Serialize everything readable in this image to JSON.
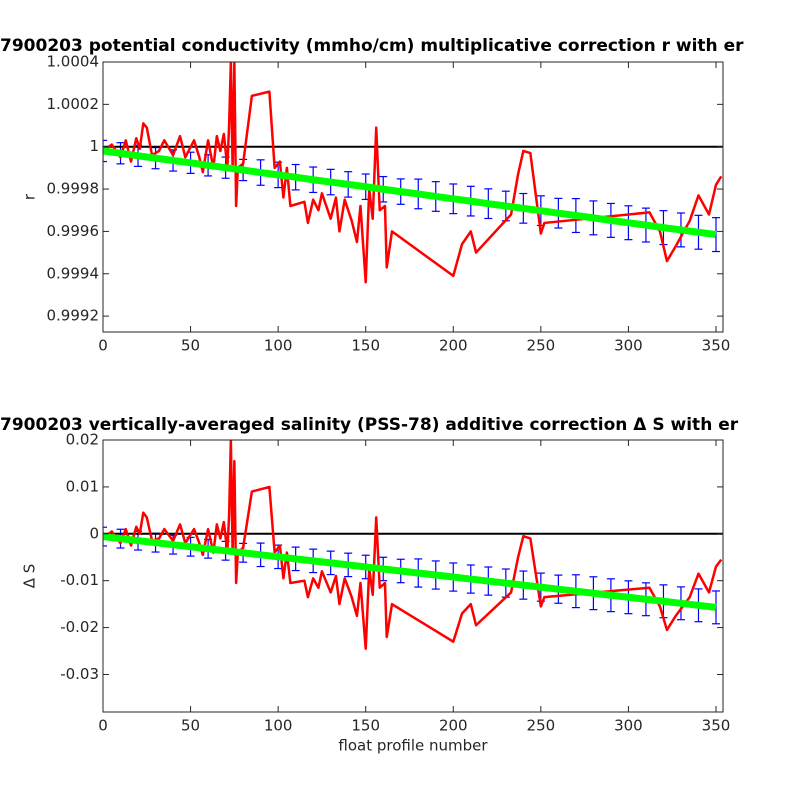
{
  "chart_data": [
    {
      "type": "line",
      "title": "7900203 potential conductivity (mmho/cm) multiplicative correction r with er",
      "ylabel": "r",
      "xlim": [
        0,
        354
      ],
      "xticks": [
        0,
        50,
        100,
        150,
        200,
        250,
        300,
        350
      ],
      "ylim": [
        0.999125,
        1.0004
      ],
      "yticks": [
        0.9992,
        0.9994,
        0.9996,
        0.9998,
        1,
        1.0002,
        1.0004
      ],
      "reference": {
        "value": 1,
        "color": "#000000"
      },
      "series": [
        {
          "color": "#ff0000",
          "x": [
            0,
            5,
            10,
            13,
            16,
            19,
            21,
            23,
            25,
            28,
            32,
            35,
            40,
            44,
            47,
            52,
            55,
            57,
            60,
            63,
            65,
            67,
            69,
            71,
            72,
            73,
            74,
            75,
            76,
            77,
            80,
            85,
            95,
            98,
            101,
            103,
            105,
            107,
            115,
            117,
            120,
            123,
            125,
            130,
            133,
            135,
            138,
            140,
            142,
            145,
            147,
            150,
            152,
            154,
            156,
            158,
            161,
            162,
            165,
            200,
            205,
            210,
            213,
            233,
            237,
            240,
            244,
            250,
            252,
            312,
            318,
            322,
            327,
            335,
            340,
            346,
            350,
            353
          ],
          "values": [
            0.99998,
            1.00001,
            0.99995,
            1.00003,
            0.99993,
            1.00004,
            0.99999,
            1.00011,
            1.00009,
            0.99996,
            0.99998,
            1.00003,
            0.99996,
            1.00005,
            0.99995,
            1.00003,
            0.99995,
            0.99988,
            1.00003,
            0.9999,
            1.00005,
            0.99998,
            1.00006,
            0.9999,
            1.0001,
            1.0004,
            0.9999,
            1.0004,
            0.99972,
            0.9999,
            0.99992,
            1.00024,
            1.00026,
            0.9999,
            0.99993,
            0.99976,
            0.9999,
            0.99972,
            0.99974,
            0.99964,
            0.99975,
            0.9997,
            0.99978,
            0.99966,
            0.99976,
            0.9996,
            0.99975,
            0.9997,
            0.99965,
            0.99955,
            0.99972,
            0.99936,
            0.9998,
            0.99966,
            1.00009,
            0.9997,
            0.99972,
            0.99943,
            0.9996,
            0.99939,
            0.99954,
            0.9996,
            0.9995,
            0.99968,
            0.99987,
            0.99998,
            0.99997,
            0.99959,
            0.99964,
            0.99969,
            0.9996,
            0.99946,
            0.99953,
            0.99965,
            0.99977,
            0.99968,
            0.99982,
            0.99986
          ]
        },
        {
          "color": "#00ff00",
          "error_color": "#0000ff",
          "x": [
            0,
            10,
            20,
            30,
            40,
            50,
            60,
            70,
            80,
            90,
            100,
            110,
            120,
            130,
            140,
            150,
            160,
            170,
            180,
            190,
            200,
            210,
            220,
            230,
            240,
            250,
            260,
            270,
            280,
            290,
            300,
            310,
            320,
            330,
            340,
            350
          ],
          "values": [
            0.99998,
            0.999969,
            0.999957,
            0.999946,
            0.999935,
            0.999924,
            0.999912,
            0.999901,
            0.99989,
            0.999878,
            0.999867,
            0.999856,
            0.999844,
            0.999833,
            0.999822,
            0.999811,
            0.999799,
            0.999788,
            0.999777,
            0.999765,
            0.999754,
            0.999743,
            0.999731,
            0.99972,
            0.999709,
            0.999698,
            0.999686,
            0.999675,
            0.999664,
            0.999652,
            0.999641,
            0.99963,
            0.999618,
            0.999607,
            0.999596,
            0.999585
          ],
          "errors": [
            5e-05,
            5e-05,
            5e-05,
            5e-05,
            5e-05,
            5e-05,
            5e-05,
            5e-05,
            5e-05,
            6e-05,
            6e-05,
            6e-05,
            6e-05,
            6e-05,
            6e-05,
            6e-05,
            6e-05,
            6e-05,
            7e-05,
            7e-05,
            7e-05,
            7e-05,
            7e-05,
            7e-05,
            7e-05,
            7e-05,
            7e-05,
            8e-05,
            8e-05,
            8e-05,
            8e-05,
            8e-05,
            8e-05,
            8e-05,
            8e-05,
            8e-05
          ]
        }
      ]
    },
    {
      "type": "line",
      "title": "7900203 vertically-averaged salinity (PSS-78) additive correction Δ S with er",
      "ylabel": "Δ S",
      "xlabel": "float profile number",
      "xlim": [
        0,
        354
      ],
      "xticks": [
        0,
        50,
        100,
        150,
        200,
        250,
        300,
        350
      ],
      "ylim": [
        -0.038,
        0.02
      ],
      "yticks": [
        -0.03,
        -0.02,
        -0.01,
        0,
        0.01,
        0.02
      ],
      "reference": {
        "value": 0,
        "color": "#000000"
      },
      "series": [
        {
          "color": "#ff0000",
          "x": [
            0,
            5,
            10,
            13,
            16,
            19,
            21,
            23,
            25,
            28,
            32,
            35,
            40,
            44,
            47,
            52,
            55,
            57,
            60,
            63,
            65,
            67,
            69,
            71,
            72,
            73,
            74,
            75,
            76,
            77,
            80,
            85,
            95,
            98,
            101,
            103,
            105,
            107,
            115,
            117,
            120,
            123,
            125,
            130,
            133,
            135,
            138,
            140,
            142,
            145,
            147,
            150,
            152,
            154,
            156,
            158,
            161,
            162,
            165,
            200,
            205,
            210,
            213,
            233,
            237,
            240,
            244,
            250,
            252,
            312,
            318,
            322,
            327,
            335,
            340,
            346,
            350,
            353
          ],
          "values": [
            -0.001,
            0.0005,
            -0.002,
            0.001,
            -0.0025,
            0.0015,
            0,
            0.0045,
            0.0035,
            -0.0015,
            -0.001,
            0.001,
            -0.0015,
            0.002,
            -0.002,
            0.001,
            -0.002,
            -0.0045,
            0.001,
            -0.004,
            0.002,
            -0.001,
            0.0025,
            -0.004,
            0.004,
            0.02,
            -0.004,
            0.0155,
            -0.0105,
            -0.004,
            -0.003,
            0.009,
            0.01,
            -0.004,
            -0.0025,
            -0.0095,
            -0.004,
            -0.0105,
            -0.01,
            -0.0135,
            -0.0095,
            -0.0115,
            -0.008,
            -0.0125,
            -0.009,
            -0.015,
            -0.0095,
            -0.0115,
            -0.0135,
            -0.0175,
            -0.0105,
            -0.0245,
            -0.0075,
            -0.013,
            0.0035,
            -0.0115,
            -0.0105,
            -0.022,
            -0.015,
            -0.023,
            -0.017,
            -0.015,
            -0.0195,
            -0.0125,
            -0.005,
            -0.0005,
            -0.001,
            -0.0155,
            -0.0135,
            -0.0115,
            -0.0155,
            -0.0205,
            -0.0175,
            -0.0135,
            -0.0085,
            -0.0125,
            -0.007,
            -0.0055
          ]
        },
        {
          "color": "#00ff00",
          "error_color": "#0000ff",
          "x": [
            0,
            10,
            20,
            30,
            40,
            50,
            60,
            70,
            80,
            90,
            100,
            110,
            120,
            130,
            140,
            150,
            160,
            170,
            180,
            190,
            200,
            210,
            220,
            230,
            240,
            250,
            260,
            270,
            280,
            290,
            300,
            310,
            320,
            330,
            340,
            350
          ],
          "values": [
            -0.0006,
            -0.00103,
            -0.00146,
            -0.00189,
            -0.00232,
            -0.00276,
            -0.00319,
            -0.00362,
            -0.00405,
            -0.00448,
            -0.00491,
            -0.00534,
            -0.00577,
            -0.0062,
            -0.00663,
            -0.00707,
            -0.0075,
            -0.00793,
            -0.00836,
            -0.00879,
            -0.00922,
            -0.00965,
            -0.01008,
            -0.01051,
            -0.01094,
            -0.01138,
            -0.01181,
            -0.01224,
            -0.01267,
            -0.0131,
            -0.01353,
            -0.01396,
            -0.01439,
            -0.01482,
            -0.01525,
            -0.01569
          ],
          "errors": [
            0.002,
            0.002,
            0.002,
            0.002,
            0.002,
            0.002,
            0.002,
            0.002,
            0.002,
            0.0025,
            0.0025,
            0.0025,
            0.0025,
            0.0025,
            0.0025,
            0.0025,
            0.0025,
            0.0025,
            0.003,
            0.003,
            0.003,
            0.003,
            0.003,
            0.003,
            0.003,
            0.003,
            0.003,
            0.0035,
            0.0035,
            0.0035,
            0.0035,
            0.0035,
            0.0035,
            0.0035,
            0.0035,
            0.0035
          ]
        }
      ]
    }
  ]
}
